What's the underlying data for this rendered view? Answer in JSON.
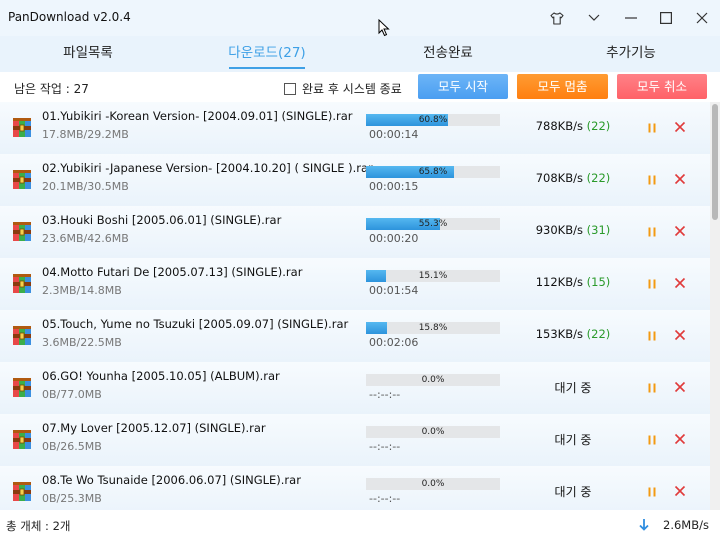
{
  "app": {
    "title": "PanDownload v2.0.4"
  },
  "tabs": [
    {
      "label": "파일목록"
    },
    {
      "label": "다운로드(27)"
    },
    {
      "label": "전송완료"
    },
    {
      "label": "추가기능"
    }
  ],
  "toolbar": {
    "remaining": "남은 작업 : 27",
    "shutdown_label": "완료 후 시스템 종료",
    "shutdown_checked": false,
    "start_all": "모두 시작",
    "pause_all": "모두 멈춤",
    "cancel_all": "모두 취소"
  },
  "colors": {
    "accent": "#3ea0e6",
    "start": "#5aa9f4",
    "pause": "#ff8a1c",
    "cancel": "#ff6e73",
    "peers": "#2a9a2a",
    "cancel_icon": "#e03b3b",
    "pause_icon": "#f39a11"
  },
  "downloads": [
    {
      "name": "01.Yubikiri -Korean Version- [2004.09.01] (SINGLE).rar",
      "size": "17.8MB/29.2MB",
      "progress": 60.8,
      "progress_label": "60.8%",
      "time": "00:00:14",
      "speed": "788KB/s",
      "peers": "(22)"
    },
    {
      "name": "02.Yubikiri -Japanese Version- [2004.10.20] ( SINGLE ).rar",
      "size": "20.1MB/30.5MB",
      "progress": 65.8,
      "progress_label": "65.8%",
      "time": "00:00:15",
      "speed": "708KB/s",
      "peers": "(22)"
    },
    {
      "name": "03.Houki Boshi [2005.06.01] (SINGLE).rar",
      "size": "23.6MB/42.6MB",
      "progress": 55.3,
      "progress_label": "55.3%",
      "time": "00:00:20",
      "speed": "930KB/s",
      "peers": "(31)"
    },
    {
      "name": "04.Motto Futari De [2005.07.13] (SINGLE).rar",
      "size": "2.3MB/14.8MB",
      "progress": 15.1,
      "progress_label": "15.1%",
      "time": "00:01:54",
      "speed": "112KB/s",
      "peers": "(15)"
    },
    {
      "name": "05.Touch, Yume no Tsuzuki [2005.09.07] (SINGLE).rar",
      "size": "3.6MB/22.5MB",
      "progress": 15.8,
      "progress_label": "15.8%",
      "time": "00:02:06",
      "speed": "153KB/s",
      "peers": "(22)"
    },
    {
      "name": "06.GO! Younha [2005.10.05] (ALBUM).rar",
      "size": "0B/77.0MB",
      "progress": 0.0,
      "progress_label": "0.0%",
      "time": "--:--:--",
      "speed": "대기 중",
      "peers": ""
    },
    {
      "name": "07.My Lover [2005.12.07] (SINGLE).rar",
      "size": "0B/26.5MB",
      "progress": 0.0,
      "progress_label": "0.0%",
      "time": "--:--:--",
      "speed": "대기 중",
      "peers": ""
    },
    {
      "name": "08.Te Wo Tsunaide [2006.06.07] (SINGLE).rar",
      "size": "0B/25.3MB",
      "progress": 0.0,
      "progress_label": "0.0%",
      "time": "--:--:--",
      "speed": "대기 중",
      "peers": ""
    }
  ],
  "status": {
    "total": "총 개체 : 2개",
    "speed": "2.6MB/s"
  }
}
